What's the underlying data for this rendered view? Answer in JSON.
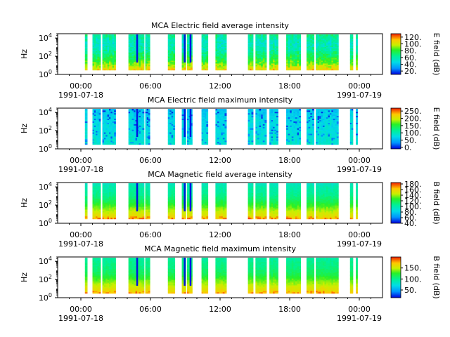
{
  "chart_data": [
    {
      "type": "heatmap",
      "title": "MCA  Electric field average intensity",
      "ylabel": "Hz",
      "yscale": "log",
      "ylim": [
        1,
        30000
      ],
      "yticks": [
        {
          "value": 1,
          "base": "10",
          "exp": "0"
        },
        {
          "value": 100,
          "base": "10",
          "exp": "2"
        },
        {
          "value": 10000,
          "base": "10",
          "exp": "4"
        }
      ],
      "xlim": [
        -2,
        26
      ],
      "xticks": [
        {
          "value": 0,
          "label": "00:00",
          "date": "1991-07-18"
        },
        {
          "value": 6,
          "label": "06:00",
          "date": ""
        },
        {
          "value": 12,
          "label": "12:00",
          "date": ""
        },
        {
          "value": 18,
          "label": "18:00",
          "date": ""
        },
        {
          "value": 24,
          "label": "00:00",
          "date": "1991-07-19"
        }
      ],
      "colorbar": {
        "label": "E field (dB)",
        "range": [
          10,
          130
        ],
        "ticks": [
          {
            "value": 20,
            "label": "20."
          },
          {
            "value": 40,
            "label": "40."
          },
          {
            "value": 60,
            "label": "60."
          },
          {
            "value": 80,
            "label": "80."
          },
          {
            "value": 100,
            "label": "100."
          },
          {
            "value": 120,
            "label": "120."
          }
        ]
      },
      "bands": [
        {
          "freq": 3,
          "level": 110
        },
        {
          "freq": 10,
          "level": 95
        },
        {
          "freq": 40,
          "level": 80
        },
        {
          "freq": 150,
          "level": 70
        },
        {
          "freq": 600,
          "level": 60
        },
        {
          "freq": 2500,
          "level": 55
        },
        {
          "freq": 10000,
          "level": 60
        },
        {
          "freq": 20000,
          "level": 65
        }
      ],
      "noise": 18,
      "highlight": "none"
    },
    {
      "type": "heatmap",
      "title": "MCA  Electric field maximum intensity",
      "ylabel": "Hz",
      "yscale": "log",
      "ylim": [
        1,
        30000
      ],
      "yticks": [
        {
          "value": 1,
          "base": "10",
          "exp": "0"
        },
        {
          "value": 100,
          "base": "10",
          "exp": "2"
        },
        {
          "value": 10000,
          "base": "10",
          "exp": "4"
        }
      ],
      "xlim": [
        -2,
        26
      ],
      "xticks": [
        {
          "value": 0,
          "label": "00:00",
          "date": "1991-07-18"
        },
        {
          "value": 6,
          "label": "06:00",
          "date": ""
        },
        {
          "value": 12,
          "label": "12:00",
          "date": ""
        },
        {
          "value": 18,
          "label": "18:00",
          "date": ""
        },
        {
          "value": 24,
          "label": "00:00",
          "date": "1991-07-19"
        }
      ],
      "colorbar": {
        "label": "E field (dB)",
        "range": [
          -10,
          270
        ],
        "ticks": [
          {
            "value": 0,
            "label": "0."
          },
          {
            "value": 50,
            "label": "50."
          },
          {
            "value": 100,
            "label": "100."
          },
          {
            "value": 150,
            "label": "150."
          },
          {
            "value": 200,
            "label": "200."
          },
          {
            "value": 250,
            "label": "250."
          }
        ]
      },
      "bands": [
        {
          "freq": 3,
          "level": 90
        },
        {
          "freq": 10,
          "level": 85
        },
        {
          "freq": 40,
          "level": 80
        },
        {
          "freq": 150,
          "level": 75
        },
        {
          "freq": 600,
          "level": 75
        },
        {
          "freq": 2500,
          "level": 70
        },
        {
          "freq": 10000,
          "level": 65
        },
        {
          "freq": 20000,
          "level": 60
        }
      ],
      "noise": 22,
      "highlight": "low"
    },
    {
      "type": "heatmap",
      "title": "MCA  Magnetic field average intensity",
      "ylabel": "Hz",
      "yscale": "log",
      "ylim": [
        1,
        30000
      ],
      "yticks": [
        {
          "value": 1,
          "base": "10",
          "exp": "0"
        },
        {
          "value": 100,
          "base": "10",
          "exp": "2"
        },
        {
          "value": 10000,
          "base": "10",
          "exp": "4"
        }
      ],
      "xlim": [
        -2,
        26
      ],
      "xticks": [
        {
          "value": 0,
          "label": "00:00",
          "date": "1991-07-18"
        },
        {
          "value": 6,
          "label": "06:00",
          "date": ""
        },
        {
          "value": 12,
          "label": "12:00",
          "date": ""
        },
        {
          "value": 18,
          "label": "18:00",
          "date": ""
        },
        {
          "value": 24,
          "label": "00:00",
          "date": "1991-07-19"
        }
      ],
      "colorbar": {
        "label": "B field (dB)",
        "range": [
          40,
          185
        ],
        "ticks": [
          {
            "value": 40,
            "label": "40."
          },
          {
            "value": 60,
            "label": "60."
          },
          {
            "value": 80,
            "label": "80."
          },
          {
            "value": 100,
            "label": "100."
          },
          {
            "value": 120,
            "label": "120."
          },
          {
            "value": 140,
            "label": "140."
          },
          {
            "value": 160,
            "label": "160."
          },
          {
            "value": 180,
            "label": "180."
          }
        ]
      },
      "bands": [
        {
          "freq": 2,
          "level": 175
        },
        {
          "freq": 5,
          "level": 155
        },
        {
          "freq": 20,
          "level": 145
        },
        {
          "freq": 80,
          "level": 130
        },
        {
          "freq": 400,
          "level": 115
        },
        {
          "freq": 2000,
          "level": 105
        },
        {
          "freq": 10000,
          "level": 100
        },
        {
          "freq": 20000,
          "level": 95
        }
      ],
      "noise": 8,
      "highlight": "none"
    },
    {
      "type": "heatmap",
      "title": "MCA  Magnetic field maximum intensity",
      "ylabel": "Hz",
      "yscale": "log",
      "ylim": [
        1,
        30000
      ],
      "yticks": [
        {
          "value": 1,
          "base": "10",
          "exp": "0"
        },
        {
          "value": 100,
          "base": "10",
          "exp": "2"
        },
        {
          "value": 10000,
          "base": "10",
          "exp": "4"
        }
      ],
      "xlim": [
        -2,
        26
      ],
      "xticks": [
        {
          "value": 0,
          "label": "00:00",
          "date": "1991-07-18"
        },
        {
          "value": 6,
          "label": "06:00",
          "date": ""
        },
        {
          "value": 12,
          "label": "12:00",
          "date": ""
        },
        {
          "value": 18,
          "label": "18:00",
          "date": ""
        },
        {
          "value": 24,
          "label": "00:00",
          "date": "1991-07-19"
        }
      ],
      "colorbar": {
        "label": "B field (dB)",
        "range": [
          15,
          200
        ],
        "ticks": [
          {
            "value": 50,
            "label": "50."
          },
          {
            "value": 100,
            "label": "100."
          },
          {
            "value": 150,
            "label": "150."
          }
        ]
      },
      "bands": [
        {
          "freq": 2,
          "level": 185
        },
        {
          "freq": 5,
          "level": 165
        },
        {
          "freq": 20,
          "level": 150
        },
        {
          "freq": 80,
          "level": 135
        },
        {
          "freq": 400,
          "level": 115
        },
        {
          "freq": 2000,
          "level": 105
        },
        {
          "freq": 10000,
          "level": 100
        },
        {
          "freq": 20000,
          "level": 95
        }
      ],
      "noise": 9,
      "highlight": "none"
    }
  ],
  "data_intervals_hours": [
    [
      0.35,
      0.55
    ],
    [
      1.0,
      1.7
    ],
    [
      1.85,
      3.0
    ],
    [
      4.1,
      5.45
    ],
    [
      5.55,
      5.95
    ],
    [
      7.5,
      8.1
    ],
    [
      8.7,
      9.05
    ],
    [
      9.15,
      9.6
    ],
    [
      10.4,
      10.95
    ],
    [
      11.6,
      12.55
    ],
    [
      14.4,
      14.85
    ],
    [
      15.05,
      16.0
    ],
    [
      16.25,
      17.0
    ],
    [
      17.7,
      18.95
    ],
    [
      19.45,
      20.1
    ],
    [
      20.25,
      22.2
    ],
    [
      23.2,
      23.45
    ],
    [
      23.7,
      23.85
    ]
  ]
}
